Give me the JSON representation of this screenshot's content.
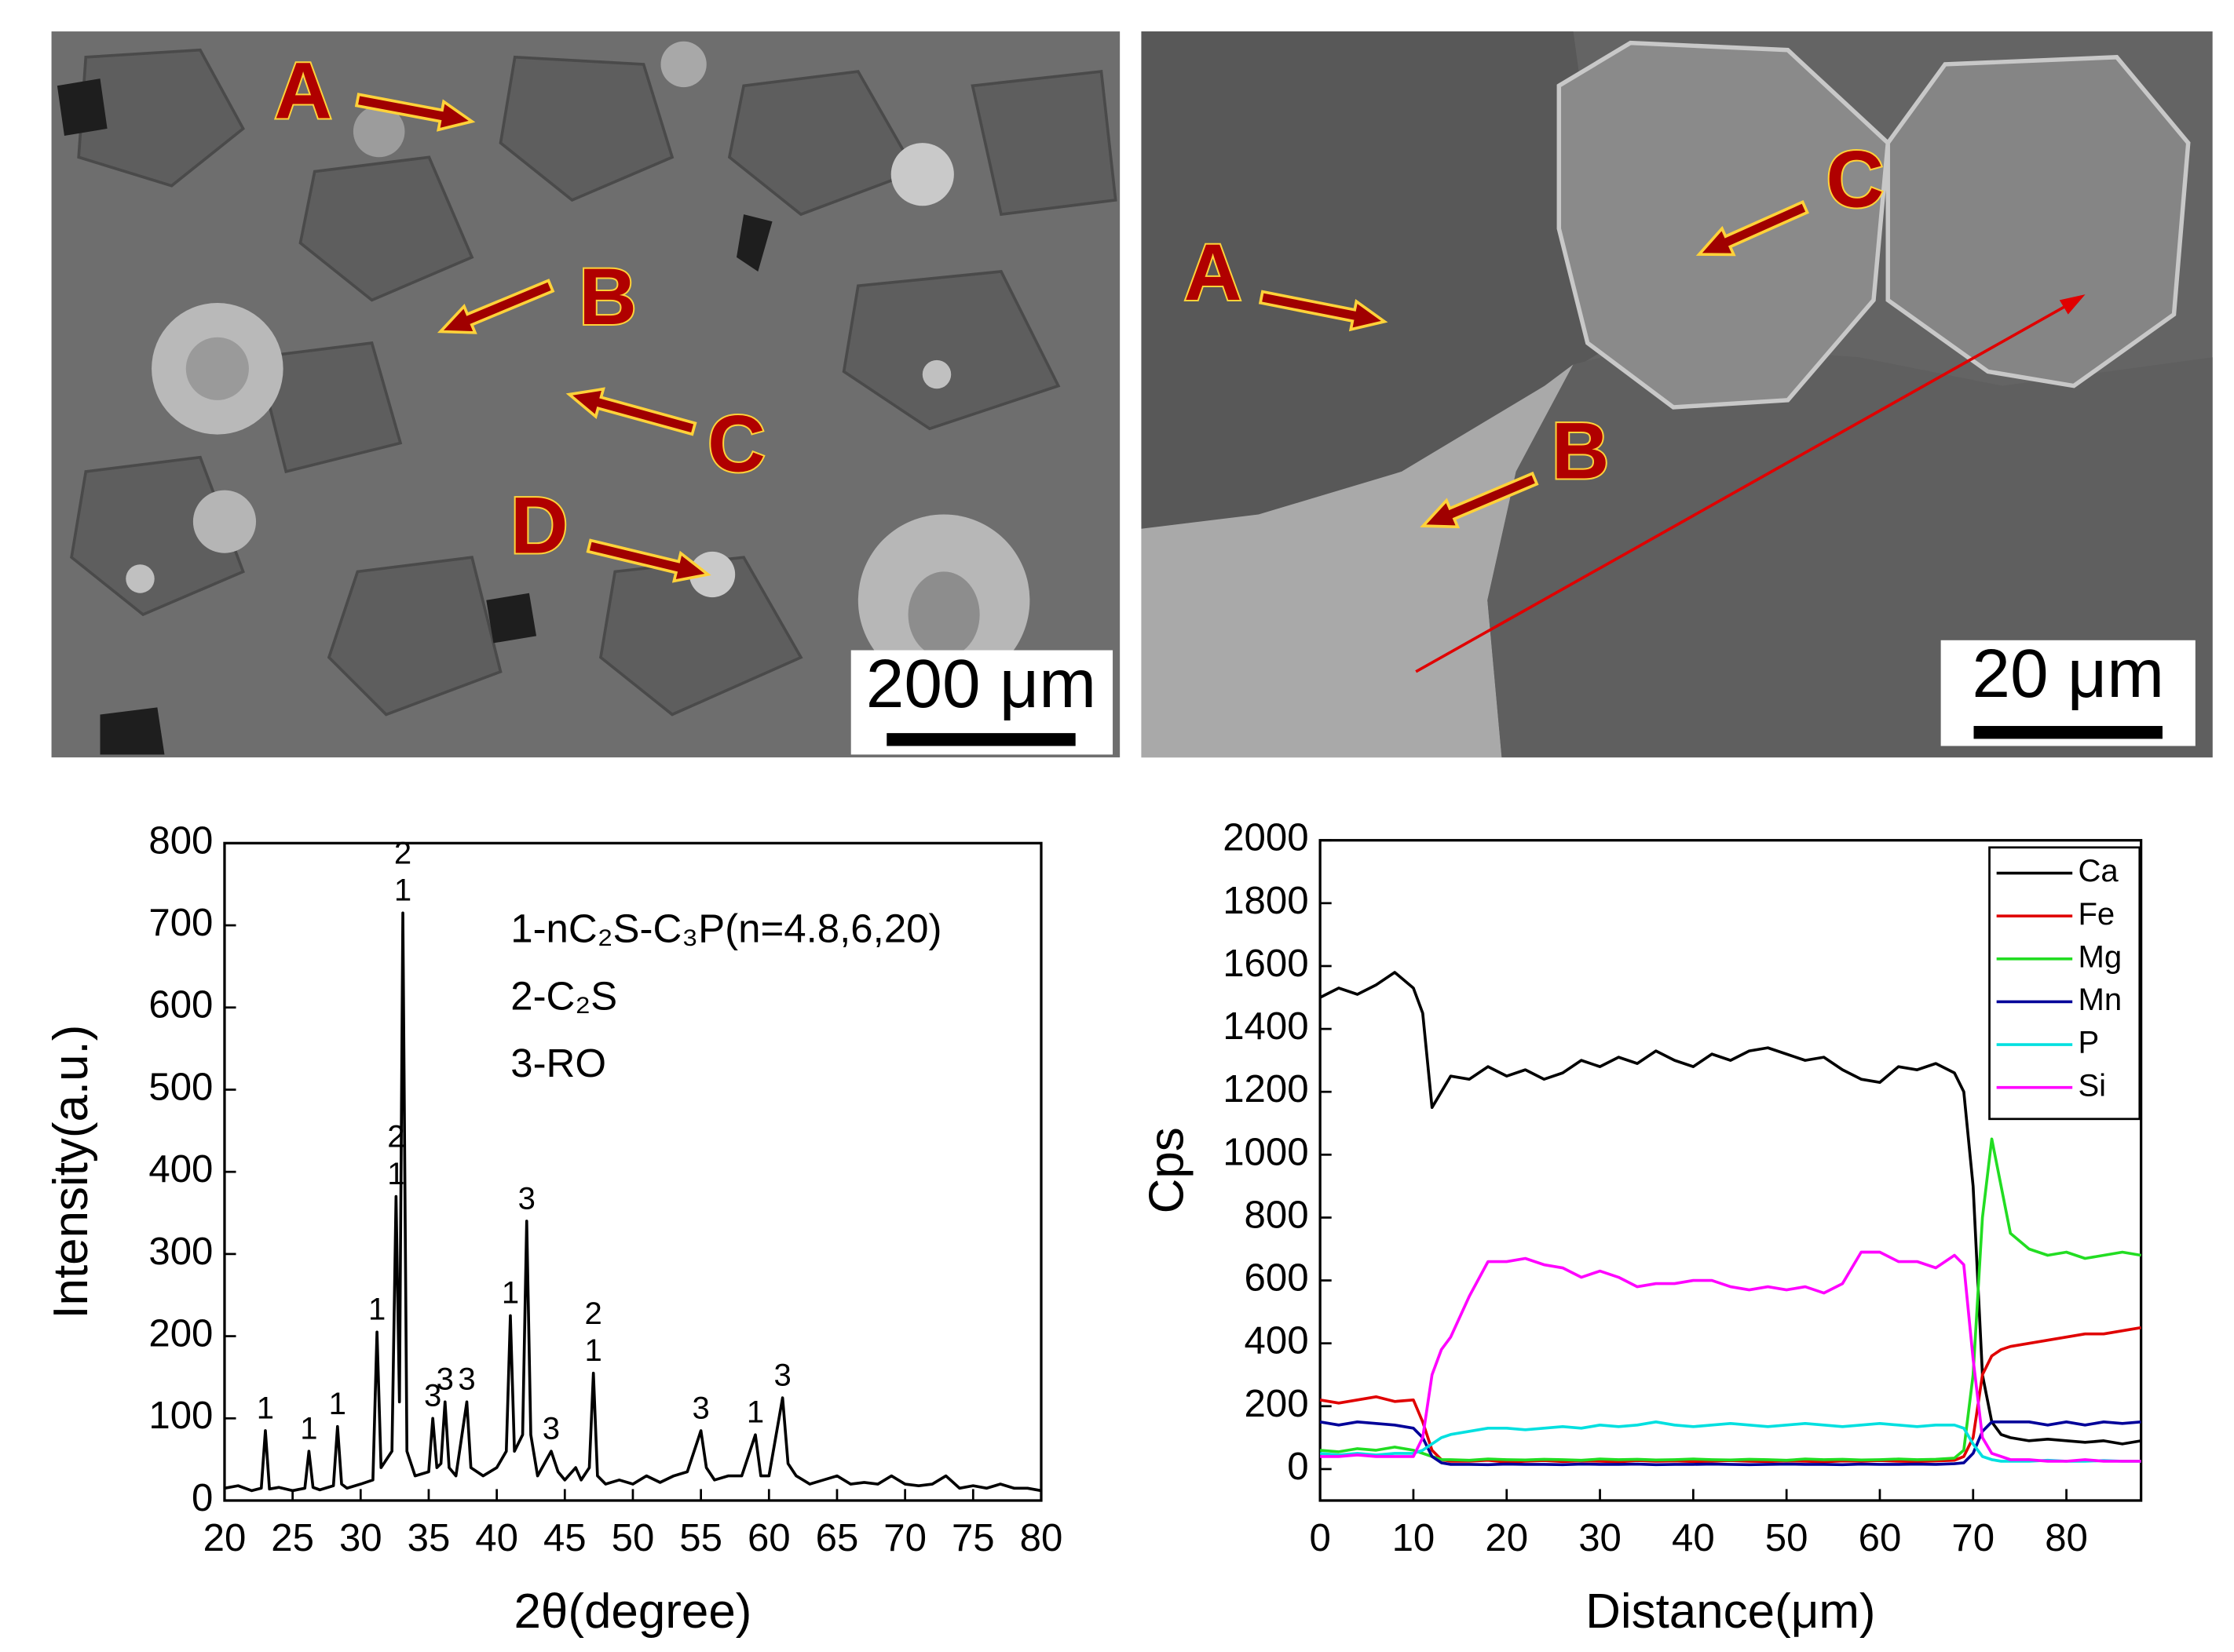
{
  "images": [
    {
      "labels": [
        "A",
        "B",
        "C",
        "D"
      ],
      "scale_bar": "200 μm"
    },
    {
      "labels": [
        "A",
        "B",
        "C"
      ],
      "scale_bar": "20 μm"
    }
  ],
  "chart_data": [
    {
      "type": "line",
      "xlabel": "2θ(degree)",
      "ylabel": "Intensity(a.u.)",
      "color": "#000000",
      "x": [
        20,
        21,
        22,
        22.7,
        23,
        23.3,
        24,
        25,
        25.9,
        26.2,
        26.5,
        27,
        28,
        28.3,
        28.6,
        29,
        30,
        30.9,
        31.2,
        31.5,
        32.3,
        32.6,
        32.85,
        33.1,
        33.4,
        34,
        35,
        35.3,
        35.6,
        35.9,
        36.2,
        36.5,
        37,
        37.8,
        38.1,
        39,
        40,
        40.7,
        41,
        41.3,
        41.9,
        42.2,
        42.5,
        43,
        44,
        44.5,
        45,
        45.8,
        46.2,
        46.8,
        47.1,
        47.4,
        48,
        49,
        50,
        51,
        52,
        53,
        54,
        55,
        55.4,
        56,
        57,
        58,
        59,
        59.4,
        60,
        61,
        61.4,
        62,
        63,
        64,
        65,
        66,
        67,
        68,
        69,
        70,
        71,
        72,
        73,
        74,
        75,
        76,
        77,
        78,
        79,
        80
      ],
      "values": [
        15,
        18,
        12,
        15,
        85,
        14,
        16,
        12,
        15,
        60,
        16,
        13,
        18,
        90,
        20,
        15,
        20,
        25,
        205,
        40,
        60,
        370,
        120,
        715,
        60,
        30,
        35,
        100,
        40,
        45,
        120,
        40,
        30,
        120,
        40,
        30,
        40,
        60,
        225,
        60,
        80,
        340,
        80,
        30,
        60,
        35,
        25,
        40,
        25,
        40,
        155,
        30,
        20,
        25,
        20,
        30,
        22,
        30,
        35,
        85,
        40,
        25,
        30,
        30,
        80,
        30,
        30,
        125,
        45,
        30,
        20,
        25,
        30,
        20,
        22,
        20,
        30,
        20,
        18,
        20,
        30,
        15,
        18,
        15,
        20,
        15,
        15,
        12
      ],
      "xlim": [
        20,
        80
      ],
      "ylim": [
        0,
        800
      ],
      "xticks": [
        20,
        25,
        30,
        35,
        40,
        45,
        50,
        55,
        60,
        65,
        70,
        75,
        80
      ],
      "yticks": [
        0,
        100,
        200,
        300,
        400,
        500,
        600,
        700,
        800
      ],
      "legend_text": [
        "1-nC₂S-C₃P(n=4.8,6,20)",
        "2-C₂S",
        "3-RO"
      ],
      "annotations": [
        {
          "text": "1",
          "x": 23,
          "y": 100
        },
        {
          "text": "1",
          "x": 26.2,
          "y": 75
        },
        {
          "text": "1",
          "x": 28.3,
          "y": 105
        },
        {
          "text": "1",
          "x": 31.2,
          "y": 220
        },
        {
          "text": "1",
          "x": 32.6,
          "y": 385
        },
        {
          "text": "2",
          "x": 32.6,
          "y": 430
        },
        {
          "text": "1",
          "x": 33.1,
          "y": 730
        },
        {
          "text": "2",
          "x": 33.1,
          "y": 775
        },
        {
          "text": "3",
          "x": 35.3,
          "y": 115
        },
        {
          "text": "3",
          "x": 36.2,
          "y": 135
        },
        {
          "text": "3",
          "x": 37.8,
          "y": 135
        },
        {
          "text": "1",
          "x": 41,
          "y": 240
        },
        {
          "text": "3",
          "x": 42.2,
          "y": 355
        },
        {
          "text": "3",
          "x": 44,
          "y": 75
        },
        {
          "text": "1",
          "x": 47.1,
          "y": 170
        },
        {
          "text": "2",
          "x": 47.1,
          "y": 215
        },
        {
          "text": "3",
          "x": 55,
          "y": 100
        },
        {
          "text": "1",
          "x": 59,
          "y": 95
        },
        {
          "text": "3",
          "x": 61,
          "y": 140
        }
      ]
    },
    {
      "type": "line",
      "xlabel": "Distance(μm)",
      "ylabel": "Cps",
      "legend": "upper right",
      "x": [
        0,
        2,
        4,
        6,
        8,
        10,
        11,
        12,
        13,
        14,
        16,
        18,
        20,
        22,
        24,
        26,
        28,
        30,
        32,
        34,
        36,
        38,
        40,
        42,
        44,
        46,
        48,
        50,
        52,
        54,
        56,
        58,
        60,
        62,
        64,
        66,
        68,
        69,
        70,
        71,
        72,
        73,
        74,
        76,
        78,
        80,
        82,
        84,
        86,
        88
      ],
      "series": [
        {
          "name": "Ca",
          "color": "#000000",
          "values": [
            1500,
            1530,
            1510,
            1540,
            1580,
            1530,
            1450,
            1150,
            1200,
            1250,
            1240,
            1280,
            1250,
            1270,
            1240,
            1260,
            1300,
            1280,
            1310,
            1290,
            1330,
            1300,
            1280,
            1320,
            1300,
            1330,
            1340,
            1320,
            1300,
            1310,
            1270,
            1240,
            1230,
            1280,
            1270,
            1290,
            1260,
            1200,
            900,
            300,
            150,
            110,
            100,
            90,
            95,
            90,
            85,
            90,
            80,
            90
          ]
        },
        {
          "name": "Fe",
          "color": "#e00000",
          "values": [
            220,
            210,
            220,
            230,
            215,
            220,
            150,
            60,
            30,
            25,
            25,
            28,
            22,
            25,
            27,
            24,
            26,
            25,
            23,
            27,
            25,
            26,
            24,
            25,
            27,
            25,
            24,
            26,
            25,
            23,
            26,
            25,
            27,
            25,
            24,
            26,
            28,
            40,
            100,
            300,
            360,
            380,
            390,
            400,
            410,
            420,
            430,
            430,
            440,
            450
          ]
        },
        {
          "name": "Mg",
          "color": "#22dd22",
          "values": [
            60,
            55,
            65,
            60,
            70,
            60,
            50,
            40,
            30,
            30,
            28,
            32,
            30,
            29,
            31,
            30,
            28,
            32,
            30,
            31,
            29,
            30,
            32,
            30,
            29,
            31,
            30,
            28,
            32,
            30,
            31,
            29,
            30,
            32,
            30,
            31,
            35,
            60,
            300,
            800,
            1050,
            900,
            750,
            700,
            680,
            690,
            670,
            680,
            690,
            680
          ]
        },
        {
          "name": "Mn",
          "color": "#000099",
          "values": [
            150,
            140,
            150,
            145,
            140,
            130,
            100,
            40,
            20,
            15,
            15,
            14,
            16,
            15,
            15,
            14,
            16,
            15,
            15,
            16,
            14,
            15,
            15,
            16,
            15,
            14,
            15,
            16,
            15,
            15,
            14,
            16,
            15,
            15,
            16,
            15,
            17,
            20,
            50,
            120,
            150,
            150,
            150,
            150,
            140,
            150,
            140,
            150,
            145,
            150
          ]
        },
        {
          "name": "P",
          "color": "#00e0e0",
          "values": [
            50,
            45,
            50,
            45,
            50,
            50,
            60,
            80,
            100,
            110,
            120,
            130,
            130,
            125,
            130,
            135,
            130,
            140,
            135,
            140,
            150,
            140,
            135,
            140,
            145,
            140,
            135,
            140,
            145,
            140,
            135,
            140,
            145,
            140,
            135,
            140,
            140,
            130,
            80,
            40,
            30,
            25,
            25,
            25,
            28,
            25,
            25,
            27,
            25,
            25
          ]
        },
        {
          "name": "Si",
          "color": "#ff00ff",
          "values": [
            40,
            40,
            45,
            40,
            40,
            40,
            100,
            300,
            380,
            420,
            550,
            660,
            660,
            670,
            650,
            640,
            610,
            630,
            610,
            580,
            590,
            590,
            600,
            600,
            580,
            570,
            580,
            570,
            580,
            560,
            590,
            690,
            690,
            660,
            660,
            640,
            680,
            650,
            350,
            100,
            50,
            40,
            30,
            30,
            25,
            25,
            30,
            25,
            25,
            25
          ]
        }
      ],
      "xlim": [
        0,
        88
      ],
      "ylim": [
        -100,
        2000
      ],
      "xticks": [
        0,
        10,
        20,
        30,
        40,
        50,
        60,
        70,
        80
      ],
      "yticks": [
        0,
        200,
        400,
        600,
        800,
        1000,
        1200,
        1400,
        1600,
        1800,
        2000
      ]
    }
  ]
}
